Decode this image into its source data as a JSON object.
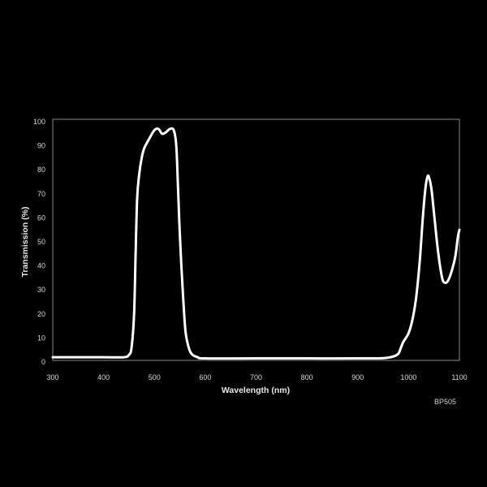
{
  "chart_data": {
    "type": "line",
    "title": "",
    "xlabel": "Wavelength (nm)",
    "ylabel": "Transmission (%)",
    "annotation": "BP505",
    "xlim": [
      300,
      1100
    ],
    "ylim": [
      0,
      100
    ],
    "xticks": [
      300,
      400,
      500,
      600,
      700,
      800,
      900,
      1000,
      1100
    ],
    "yticks": [
      0,
      10,
      20,
      30,
      40,
      50,
      60,
      70,
      80,
      90,
      100
    ],
    "grid": false,
    "background": "#000000",
    "line_color": "#ffffff",
    "series": [
      {
        "x": [
          300,
          400,
          440,
          450,
          455,
          460,
          463,
          466,
          470,
          475,
          480,
          490,
          500,
          508,
          515,
          522,
          530,
          538,
          543,
          546,
          549,
          553,
          557,
          561,
          565,
          570,
          575,
          585,
          600,
          700,
          800,
          900,
          950,
          970,
          980,
          985,
          990,
          1000,
          1008,
          1015,
          1022,
          1028,
          1033,
          1037,
          1040,
          1045,
          1050,
          1058,
          1066,
          1072,
          1078,
          1085,
          1092,
          1097,
          1100
        ],
        "y": [
          2,
          2,
          2,
          3,
          6,
          20,
          45,
          68,
          78,
          85,
          89,
          93,
          96.5,
          97,
          95,
          95.5,
          97,
          96.5,
          90,
          75,
          58,
          40,
          25,
          13,
          8,
          4.5,
          3,
          2,
          1.5,
          1.5,
          1.5,
          1.5,
          1.6,
          2.3,
          3.5,
          6,
          8.5,
          12,
          18,
          27,
          42,
          60,
          72,
          77,
          77,
          72,
          62,
          46,
          35,
          33,
          34,
          38,
          44,
          52,
          55
        ]
      }
    ]
  }
}
